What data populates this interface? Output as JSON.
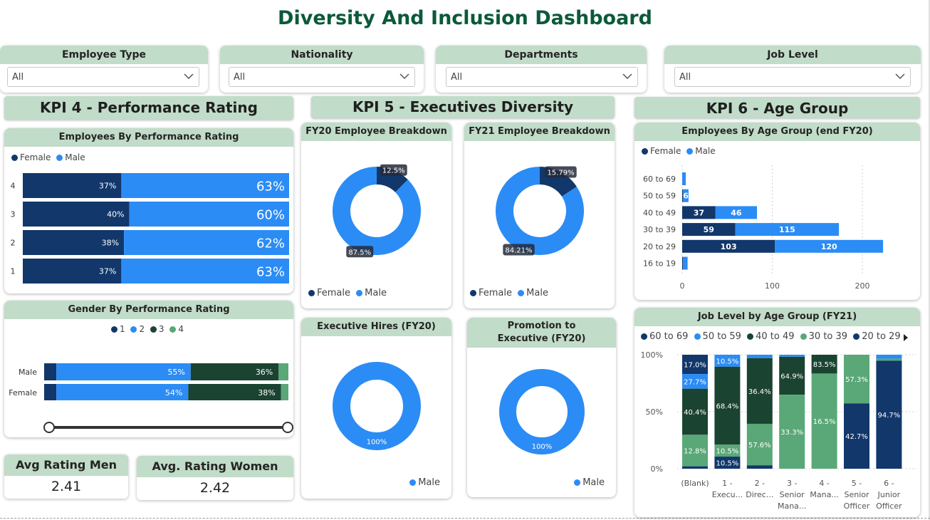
{
  "title": "Diversity And Inclusion Dashboard",
  "colors": {
    "female": "#12376b",
    "male": "#2b8cf5",
    "header_bg": "#c1dcc9",
    "title": "#0b5a3a",
    "dark_green": "#1b4332",
    "light_green": "#5aa777"
  },
  "filters": [
    {
      "label": "Employee Type",
      "value": "All"
    },
    {
      "label": "Nationality",
      "value": "All"
    },
    {
      "label": "Departments",
      "value": "All"
    },
    {
      "label": "Job Level",
      "value": "All"
    }
  ],
  "kpi_headers": [
    "KPI 4 - Performance Rating",
    "KPI 5 - Executives Diversity",
    "KPI 6 - Age Group"
  ],
  "perf_rating": {
    "title": "Employees By Performance Rating",
    "legend": [
      "Female",
      "Male"
    ],
    "rows": [
      {
        "rating": "4",
        "female_label": "37%",
        "male_label": "63%"
      },
      {
        "rating": "3",
        "female_label": "40%",
        "male_label": "60%"
      },
      {
        "rating": "2",
        "female_label": "38%",
        "male_label": "62%"
      },
      {
        "rating": "1",
        "female_label": "37%",
        "male_label": "63%"
      }
    ]
  },
  "gender_rating": {
    "title": "Gender By Performance Rating",
    "legend": [
      "1",
      "2",
      "3",
      "4"
    ],
    "rows": [
      {
        "gender": "Male",
        "label2": "55%",
        "label3": "36%"
      },
      {
        "gender": "Female",
        "label2": "54%",
        "label3": "38%"
      }
    ]
  },
  "avg": {
    "men_label": "Avg Rating Men",
    "men_value": "2.41",
    "women_label": "Avg. Rating Women",
    "women_value": "2.42"
  },
  "donuts": {
    "fy20": {
      "title": "FY20 Employee Breakdown",
      "female_label": "12.5%",
      "male_label": "87.5%",
      "legend": [
        "Female",
        "Male"
      ]
    },
    "fy21": {
      "title": "FY21 Employee Breakdown",
      "female_label": "15.79%",
      "male_label": "84.21%",
      "legend": [
        "Female",
        "Male"
      ]
    },
    "hires": {
      "title": "Executive Hires (FY20)",
      "label": "100%",
      "legend": [
        "Male"
      ]
    },
    "promo": {
      "title": "Promotion to Executive (FY20)",
      "label": "100%",
      "legend": [
        "Male"
      ]
    }
  },
  "age_group": {
    "title": "Employees By Age Group (end FY20)",
    "legend": [
      "Female",
      "Male"
    ],
    "rows": [
      {
        "age": "60 to 69",
        "female_label": "",
        "male_label": ""
      },
      {
        "age": "50 to 59",
        "female_label": "",
        "male_label": "6"
      },
      {
        "age": "40 to 49",
        "female_label": "37",
        "male_label": "46"
      },
      {
        "age": "30 to 39",
        "female_label": "59",
        "male_label": "115"
      },
      {
        "age": "20 to 29",
        "female_label": "103",
        "male_label": "120"
      },
      {
        "age": "16 to 19",
        "female_label": "",
        "male_label": ""
      }
    ],
    "ticks": [
      "0",
      "100",
      "200"
    ]
  },
  "job_level": {
    "title": "Job Level by Age Group (FY21)",
    "legend": [
      "60 to 69",
      "50 to 59",
      "40 to 49",
      "30 to 39",
      "20 to 29"
    ],
    "yticks": [
      "100%",
      "50%",
      "0%"
    ],
    "columns": [
      {
        "l1": "(Blank)",
        "l2": "",
        "l3": ""
      },
      {
        "l1": "1 -",
        "l2": "Execu...",
        "l3": ""
      },
      {
        "l1": "2 -",
        "l2": "Direc...",
        "l3": ""
      },
      {
        "l1": "3 -",
        "l2": "Senior",
        "l3": "Mana..."
      },
      {
        "l1": "4 -",
        "l2": "Mana...",
        "l3": ""
      },
      {
        "l1": "5 -",
        "l2": "Senior",
        "l3": "Officer"
      },
      {
        "l1": "6 -",
        "l2": "Junior",
        "l3": "Officer"
      }
    ],
    "labels": [
      "17.0%",
      "27.7%",
      "40.4%",
      "12.8%",
      "10.5%",
      "68.4%",
      "10.5%",
      "10.5%",
      "36.4%",
      "57.6%",
      "64.9%",
      "33.3%",
      "83.5%",
      "16.5%",
      "57.3%",
      "42.7%",
      "94.7%"
    ]
  },
  "chart_data": [
    {
      "type": "bar",
      "title": "Employees By Performance Rating",
      "categories": [
        "4",
        "3",
        "2",
        "1"
      ],
      "series": [
        {
          "name": "Female",
          "values": [
            37,
            40,
            38,
            37
          ]
        },
        {
          "name": "Male",
          "values": [
            63,
            60,
            62,
            63
          ]
        }
      ],
      "stacked": "100%",
      "legend": "top-left"
    },
    {
      "type": "bar",
      "title": "Gender By Performance Rating",
      "categories": [
        "Male",
        "Female"
      ],
      "series": [
        {
          "name": "1",
          "values": [
            5,
            5
          ]
        },
        {
          "name": "2",
          "values": [
            55,
            54
          ]
        },
        {
          "name": "3",
          "values": [
            36,
            38
          ]
        },
        {
          "name": "4",
          "values": [
            4,
            3
          ]
        }
      ],
      "stacked": "100%",
      "legend": "top-center"
    },
    {
      "type": "pie",
      "title": "FY20 Employee Breakdown",
      "categories": [
        "Female",
        "Male"
      ],
      "values": [
        12.5,
        87.5
      ]
    },
    {
      "type": "pie",
      "title": "FY21 Employee Breakdown",
      "categories": [
        "Female",
        "Male"
      ],
      "values": [
        15.79,
        84.21
      ]
    },
    {
      "type": "pie",
      "title": "Executive Hires (FY20)",
      "categories": [
        "Male"
      ],
      "values": [
        100
      ]
    },
    {
      "type": "pie",
      "title": "Promotion to Executive (FY20)",
      "categories": [
        "Male"
      ],
      "values": [
        100
      ]
    },
    {
      "type": "bar",
      "title": "Employees By Age Group (end FY20)",
      "categories": [
        "60 to 69",
        "50 to 59",
        "40 to 49",
        "30 to 39",
        "20 to 29",
        "16 to 19"
      ],
      "series": [
        {
          "name": "Female",
          "values": [
            0,
            1,
            37,
            59,
            103,
            1
          ]
        },
        {
          "name": "Male",
          "values": [
            4,
            6,
            46,
            115,
            120,
            5
          ]
        }
      ],
      "xlim": [
        0,
        250
      ],
      "legend": "top-left"
    },
    {
      "type": "bar",
      "title": "Job Level by Age Group (FY21)",
      "categories": [
        "(Blank)",
        "1 - Execu...",
        "2 - Direc...",
        "3 - Senior Mana...",
        "4 - Mana...",
        "5 - Senior Officer",
        "6 - Junior Officer"
      ],
      "series": [
        {
          "name": "60 to 69",
          "values": [
            17.0,
            0,
            0,
            0,
            0,
            0,
            0
          ]
        },
        {
          "name": "50 to 59",
          "values": [
            12.8,
            10.5,
            3.0,
            1.8,
            0,
            0,
            3.5
          ]
        },
        {
          "name": "40 to 49",
          "values": [
            40.4,
            68.4,
            57.6,
            33.3,
            16.5,
            0,
            0
          ]
        },
        {
          "name": "30 to 39",
          "values": [
            27.7,
            10.5,
            36.4,
            64.9,
            83.5,
            42.7,
            1.8
          ]
        },
        {
          "name": "20 to 29",
          "values": [
            2.1,
            10.6,
            3.0,
            0,
            0,
            57.3,
            94.7
          ]
        }
      ],
      "stacked": "100%",
      "ylim": [
        0,
        100
      ],
      "legend": "top-left"
    }
  ]
}
